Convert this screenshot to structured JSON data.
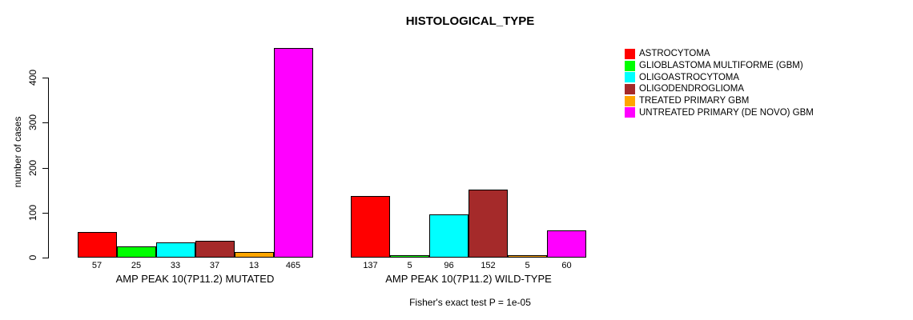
{
  "chart_data": {
    "type": "bar",
    "title": "HISTOLOGICAL_TYPE",
    "ylabel": "number of cases",
    "xlabel": "",
    "ylim": [
      0,
      483
    ],
    "yticks": [
      0,
      100,
      200,
      300,
      400
    ],
    "grid": false,
    "legend_position": "right",
    "background_color": "#ffffff",
    "text_color": "#000000",
    "bar_border_color": "#000000",
    "categories": [
      "AMP PEAK 10(7P11.2) MUTATED",
      "AMP PEAK 10(7P11.2) WILD-TYPE"
    ],
    "series": [
      {
        "name": "ASTROCYTOMA",
        "color": "#FF0000",
        "values": [
          57,
          137
        ]
      },
      {
        "name": "GLIOBLASTOMA MULTIFORME (GBM)",
        "color": "#00FF00",
        "values": [
          25,
          5
        ]
      },
      {
        "name": "OLIGOASTROCYTOMA",
        "color": "#00FFFF",
        "values": [
          33,
          96
        ]
      },
      {
        "name": "OLIGODENDROGLIOMA",
        "color": "#A52A2A",
        "values": [
          37,
          152
        ]
      },
      {
        "name": "TREATED PRIMARY GBM",
        "color": "#FFA500",
        "values": [
          13,
          5
        ]
      },
      {
        "name": "UNTREATED PRIMARY (DE NOVO) GBM",
        "color": "#FF00FF",
        "values": [
          465,
          60
        ]
      }
    ],
    "annotation": "Fisher's exact test P = 1e-05"
  }
}
